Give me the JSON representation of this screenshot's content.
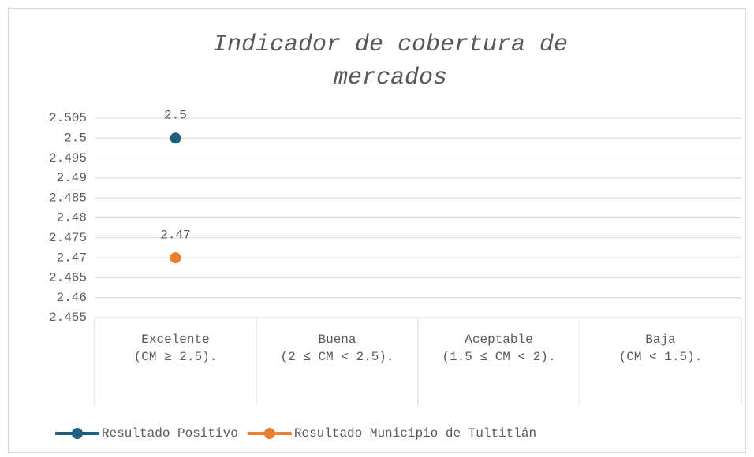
{
  "chart_data": {
    "type": "line",
    "title": "Indicador de cobertura de mercados",
    "categories": [
      "Excelente\n(CM ≥ 2.5).",
      "Buena\n(2 ≤ CM < 2.5).",
      "Aceptable\n(1.5 ≤ CM < 2).",
      "Baja\n(CM < 1.5)."
    ],
    "series": [
      {
        "name": "Resultado Positivo",
        "color": "#1f5f7f",
        "values": [
          2.5,
          null,
          null,
          null
        ]
      },
      {
        "name": "Resultado Municipio de Tultitlán",
        "color": "#ed7d31",
        "values": [
          2.47,
          null,
          null,
          null
        ]
      }
    ],
    "ylim": [
      2.455,
      2.505
    ],
    "yticks": [
      2.455,
      2.46,
      2.465,
      2.47,
      2.475,
      2.48,
      2.485,
      2.49,
      2.495,
      2.5,
      2.505
    ],
    "grid": true,
    "legend": "bottom"
  }
}
